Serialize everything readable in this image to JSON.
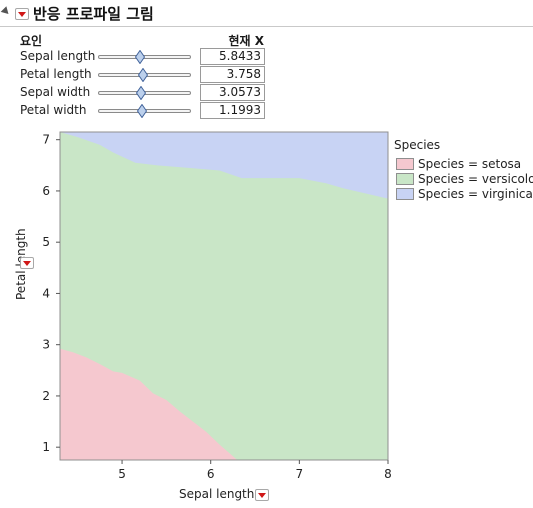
{
  "header": {
    "title": "반응 프로파일 그림",
    "factor_header": "요인",
    "current_x_header": "현재 X"
  },
  "factors": [
    {
      "label": "Sepal length",
      "value": "5.8433",
      "slider_fraction": 0.45
    },
    {
      "label": "Petal length",
      "value": "3.758",
      "slider_fraction": 0.48
    },
    {
      "label": "Sepal width",
      "value": "3.0573",
      "slider_fraction": 0.46
    },
    {
      "label": "Petal width",
      "value": "1.1993",
      "slider_fraction": 0.47
    }
  ],
  "colors": {
    "setosa": "#f5c8cf",
    "versicolor": "#c9e6c7",
    "virginica": "#c8d3f4"
  },
  "chart_data": {
    "type": "area",
    "xlabel": "Sepal length",
    "ylabel": "Petal length",
    "xlim": [
      4.3,
      8.0
    ],
    "ylim": [
      0.75,
      7.15
    ],
    "x_ticks": [
      5,
      6,
      7,
      8
    ],
    "y_ticks": [
      1,
      2,
      3,
      4,
      5,
      6,
      7
    ],
    "legend_title": "Species",
    "legend_position": "right",
    "series": [
      {
        "name": "Species = setosa",
        "color": "#f5c8cf"
      },
      {
        "name": "Species = versicolor",
        "color": "#c9e6c7"
      },
      {
        "name": "Species = virginica",
        "color": "#c8d3f4"
      }
    ],
    "setosa_upper_boundary": {
      "x": [
        4.3,
        4.45,
        4.6,
        4.75,
        4.9,
        5.0,
        5.2,
        5.35,
        5.5,
        5.65,
        5.8,
        5.95,
        6.1,
        6.3
      ],
      "y": [
        2.92,
        2.85,
        2.75,
        2.62,
        2.48,
        2.45,
        2.3,
        2.05,
        1.92,
        1.7,
        1.5,
        1.3,
        1.05,
        0.75
      ]
    },
    "virginica_lower_boundary": {
      "x": [
        4.3,
        4.5,
        4.75,
        4.9,
        5.15,
        5.4,
        5.75,
        6.1,
        6.35,
        7.0,
        7.3,
        7.5,
        7.75,
        8.0
      ],
      "y": [
        7.15,
        7.05,
        6.9,
        6.75,
        6.55,
        6.5,
        6.45,
        6.4,
        6.25,
        6.25,
        6.15,
        6.05,
        5.95,
        5.85
      ]
    }
  }
}
